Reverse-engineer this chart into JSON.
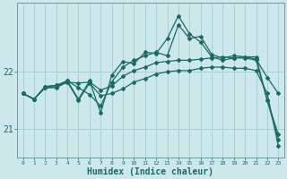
{
  "xlabel": "Humidex (Indice chaleur)",
  "bg_color": "#cce8eb",
  "grid_color": "#aacfd4",
  "line_color": "#1a6b60",
  "x_values": [
    0,
    1,
    2,
    3,
    4,
    5,
    6,
    7,
    8,
    9,
    10,
    11,
    12,
    13,
    14,
    15,
    16,
    17,
    18,
    19,
    20,
    21,
    22,
    23
  ],
  "line1_smooth": [
    21.62,
    21.52,
    21.72,
    21.74,
    21.82,
    21.8,
    21.82,
    21.68,
    21.75,
    21.92,
    22.02,
    22.08,
    22.16,
    22.18,
    22.2,
    22.2,
    22.22,
    22.24,
    22.26,
    22.24,
    22.26,
    22.22,
    21.9,
    21.62
  ],
  "line2_volatile": [
    21.62,
    21.52,
    21.74,
    21.76,
    21.84,
    21.72,
    21.6,
    21.4,
    21.82,
    22.08,
    22.2,
    22.28,
    22.34,
    22.28,
    22.82,
    22.58,
    22.62,
    22.3,
    22.24,
    22.28,
    22.26,
    22.26,
    21.5,
    20.9
  ],
  "line3_peak": [
    21.62,
    21.52,
    21.74,
    21.76,
    21.84,
    21.52,
    21.84,
    21.28,
    21.94,
    22.18,
    22.14,
    22.34,
    22.32,
    22.58,
    22.98,
    22.66,
    22.52,
    22.26,
    22.2,
    22.24,
    22.24,
    22.2,
    21.5,
    20.82
  ],
  "line4_descent": [
    21.62,
    21.52,
    21.72,
    21.72,
    21.82,
    21.5,
    21.8,
    21.58,
    21.62,
    21.7,
    21.82,
    21.88,
    21.96,
    22.0,
    22.02,
    22.02,
    22.06,
    22.08,
    22.08,
    22.06,
    22.06,
    22.02,
    21.62,
    20.7
  ],
  "ylim": [
    20.5,
    23.2
  ],
  "yticks": [
    21.0,
    22.0
  ],
  "xlim": [
    -0.5,
    23.5
  ]
}
